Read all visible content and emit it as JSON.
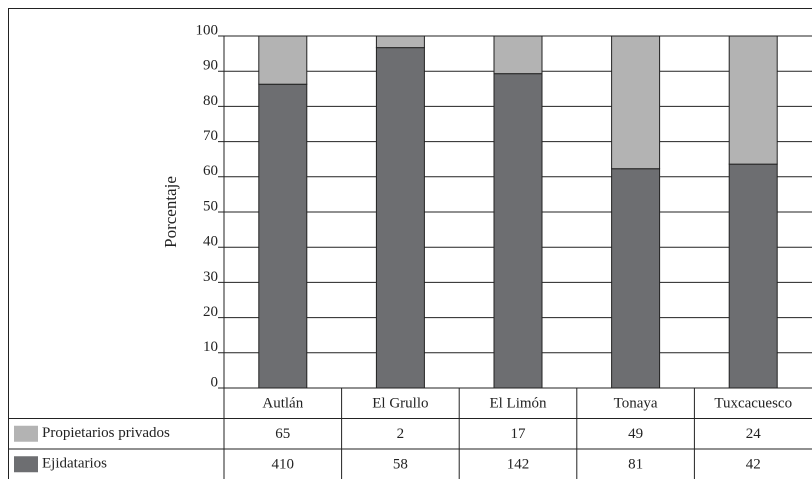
{
  "chart_data": {
    "type": "stacked_bar_table",
    "y_label": "Porcentaje",
    "categories": [
      "Autlán",
      "El Grullo",
      "El Limón",
      "Tonaya",
      "Tuxcacuesco"
    ],
    "series": [
      {
        "name": "Propietarios privados",
        "color": "#b3b3b3",
        "values": [
          13.7,
          3.3,
          10.7,
          37.7,
          36.4
        ],
        "counts": [
          "65",
          "2",
          "17",
          "49",
          "24"
        ]
      },
      {
        "name": "Ejidatarios",
        "color": "#6d6e71",
        "values": [
          86.3,
          96.7,
          89.3,
          62.3,
          63.6
        ],
        "counts": [
          "410",
          "58",
          "142",
          "81",
          "42"
        ]
      }
    ],
    "ylim": [
      0,
      100
    ],
    "yticks": [
      0,
      10,
      20,
      30,
      40,
      50,
      60,
      70,
      80,
      90,
      100
    ],
    "grid": true
  }
}
